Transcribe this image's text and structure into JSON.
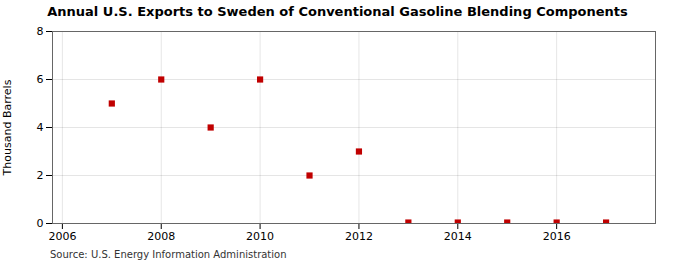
{
  "chart_data": {
    "type": "scatter",
    "title": "Annual U.S. Exports to Sweden of Conventional Gasoline Blending Components",
    "ylabel": "Thousand Barrels",
    "annotation": "Source: U.S. Energy Information Administration",
    "x": [
      2007,
      2008,
      2009,
      2010,
      2011,
      2012,
      2013,
      2014,
      2015,
      2016,
      2017
    ],
    "values": [
      5,
      6,
      4,
      6,
      2,
      3,
      0.04,
      0.04,
      0.04,
      0.04,
      0.04
    ],
    "color": "#c00000",
    "marker": "square",
    "xlim": [
      2005.8,
      2018.0
    ],
    "ylim": [
      0,
      8
    ],
    "xticks": [
      2006,
      2008,
      2010,
      2012,
      2014,
      2016
    ],
    "yticks": [
      0,
      2,
      4,
      6,
      8
    ],
    "grid": true
  }
}
